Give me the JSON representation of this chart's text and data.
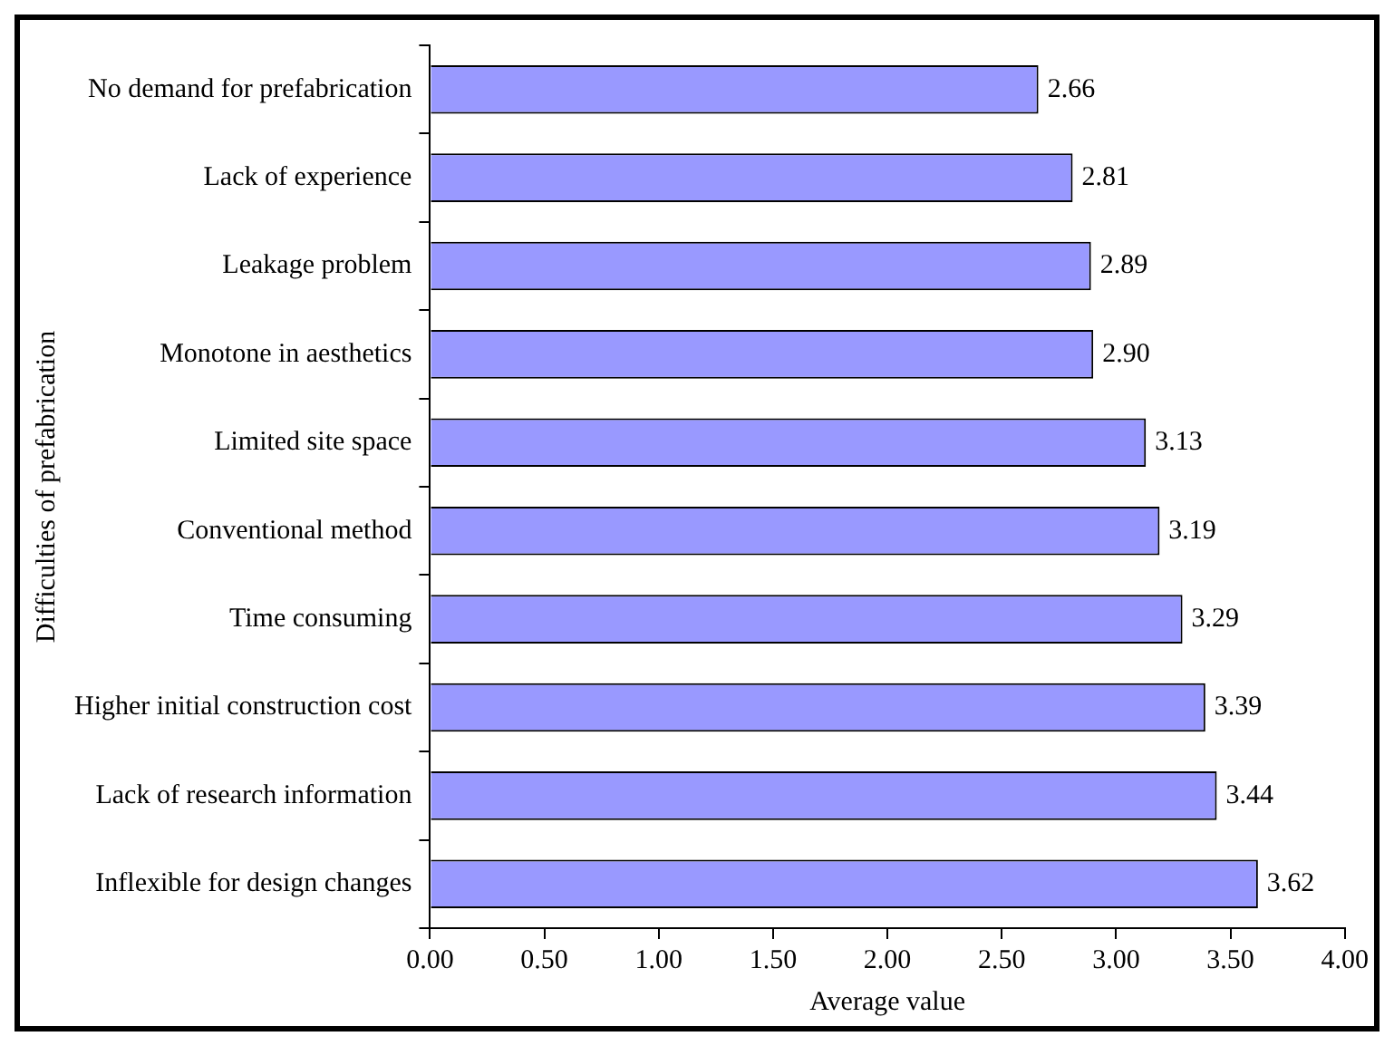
{
  "chart_data": {
    "type": "bar",
    "orientation": "horizontal",
    "xlabel": "Average value",
    "ylabel": "Difficulties of prefabrication",
    "categories": [
      "No demand for prefabrication",
      "Lack of experience",
      "Leakage problem",
      "Monotone in aesthetics",
      "Limited site space",
      "Conventional method",
      "Time consuming",
      "Higher initial construction cost",
      "Lack of research information",
      "Inflexible for design changes"
    ],
    "values": [
      2.66,
      2.81,
      2.89,
      2.9,
      3.13,
      3.19,
      3.29,
      3.39,
      3.44,
      3.62
    ],
    "value_labels": [
      "2.66",
      "2.81",
      "2.89",
      "2.90",
      "3.13",
      "3.19",
      "3.29",
      "3.39",
      "3.44",
      "3.62"
    ],
    "color": "#9999ff",
    "xlim": [
      0,
      4
    ],
    "xticks": [
      {
        "value": 0,
        "label": "0.00"
      },
      {
        "value": 0.5,
        "label": "0.50"
      },
      {
        "value": 1,
        "label": "1.00"
      },
      {
        "value": 1.5,
        "label": "1.50"
      },
      {
        "value": 2,
        "label": "2.00"
      },
      {
        "value": 2.5,
        "label": "2.50"
      },
      {
        "value": 3,
        "label": "3.00"
      },
      {
        "value": 3.5,
        "label": "3.50"
      },
      {
        "value": 4,
        "label": "4.00"
      }
    ],
    "grid": false,
    "legend": false
  }
}
